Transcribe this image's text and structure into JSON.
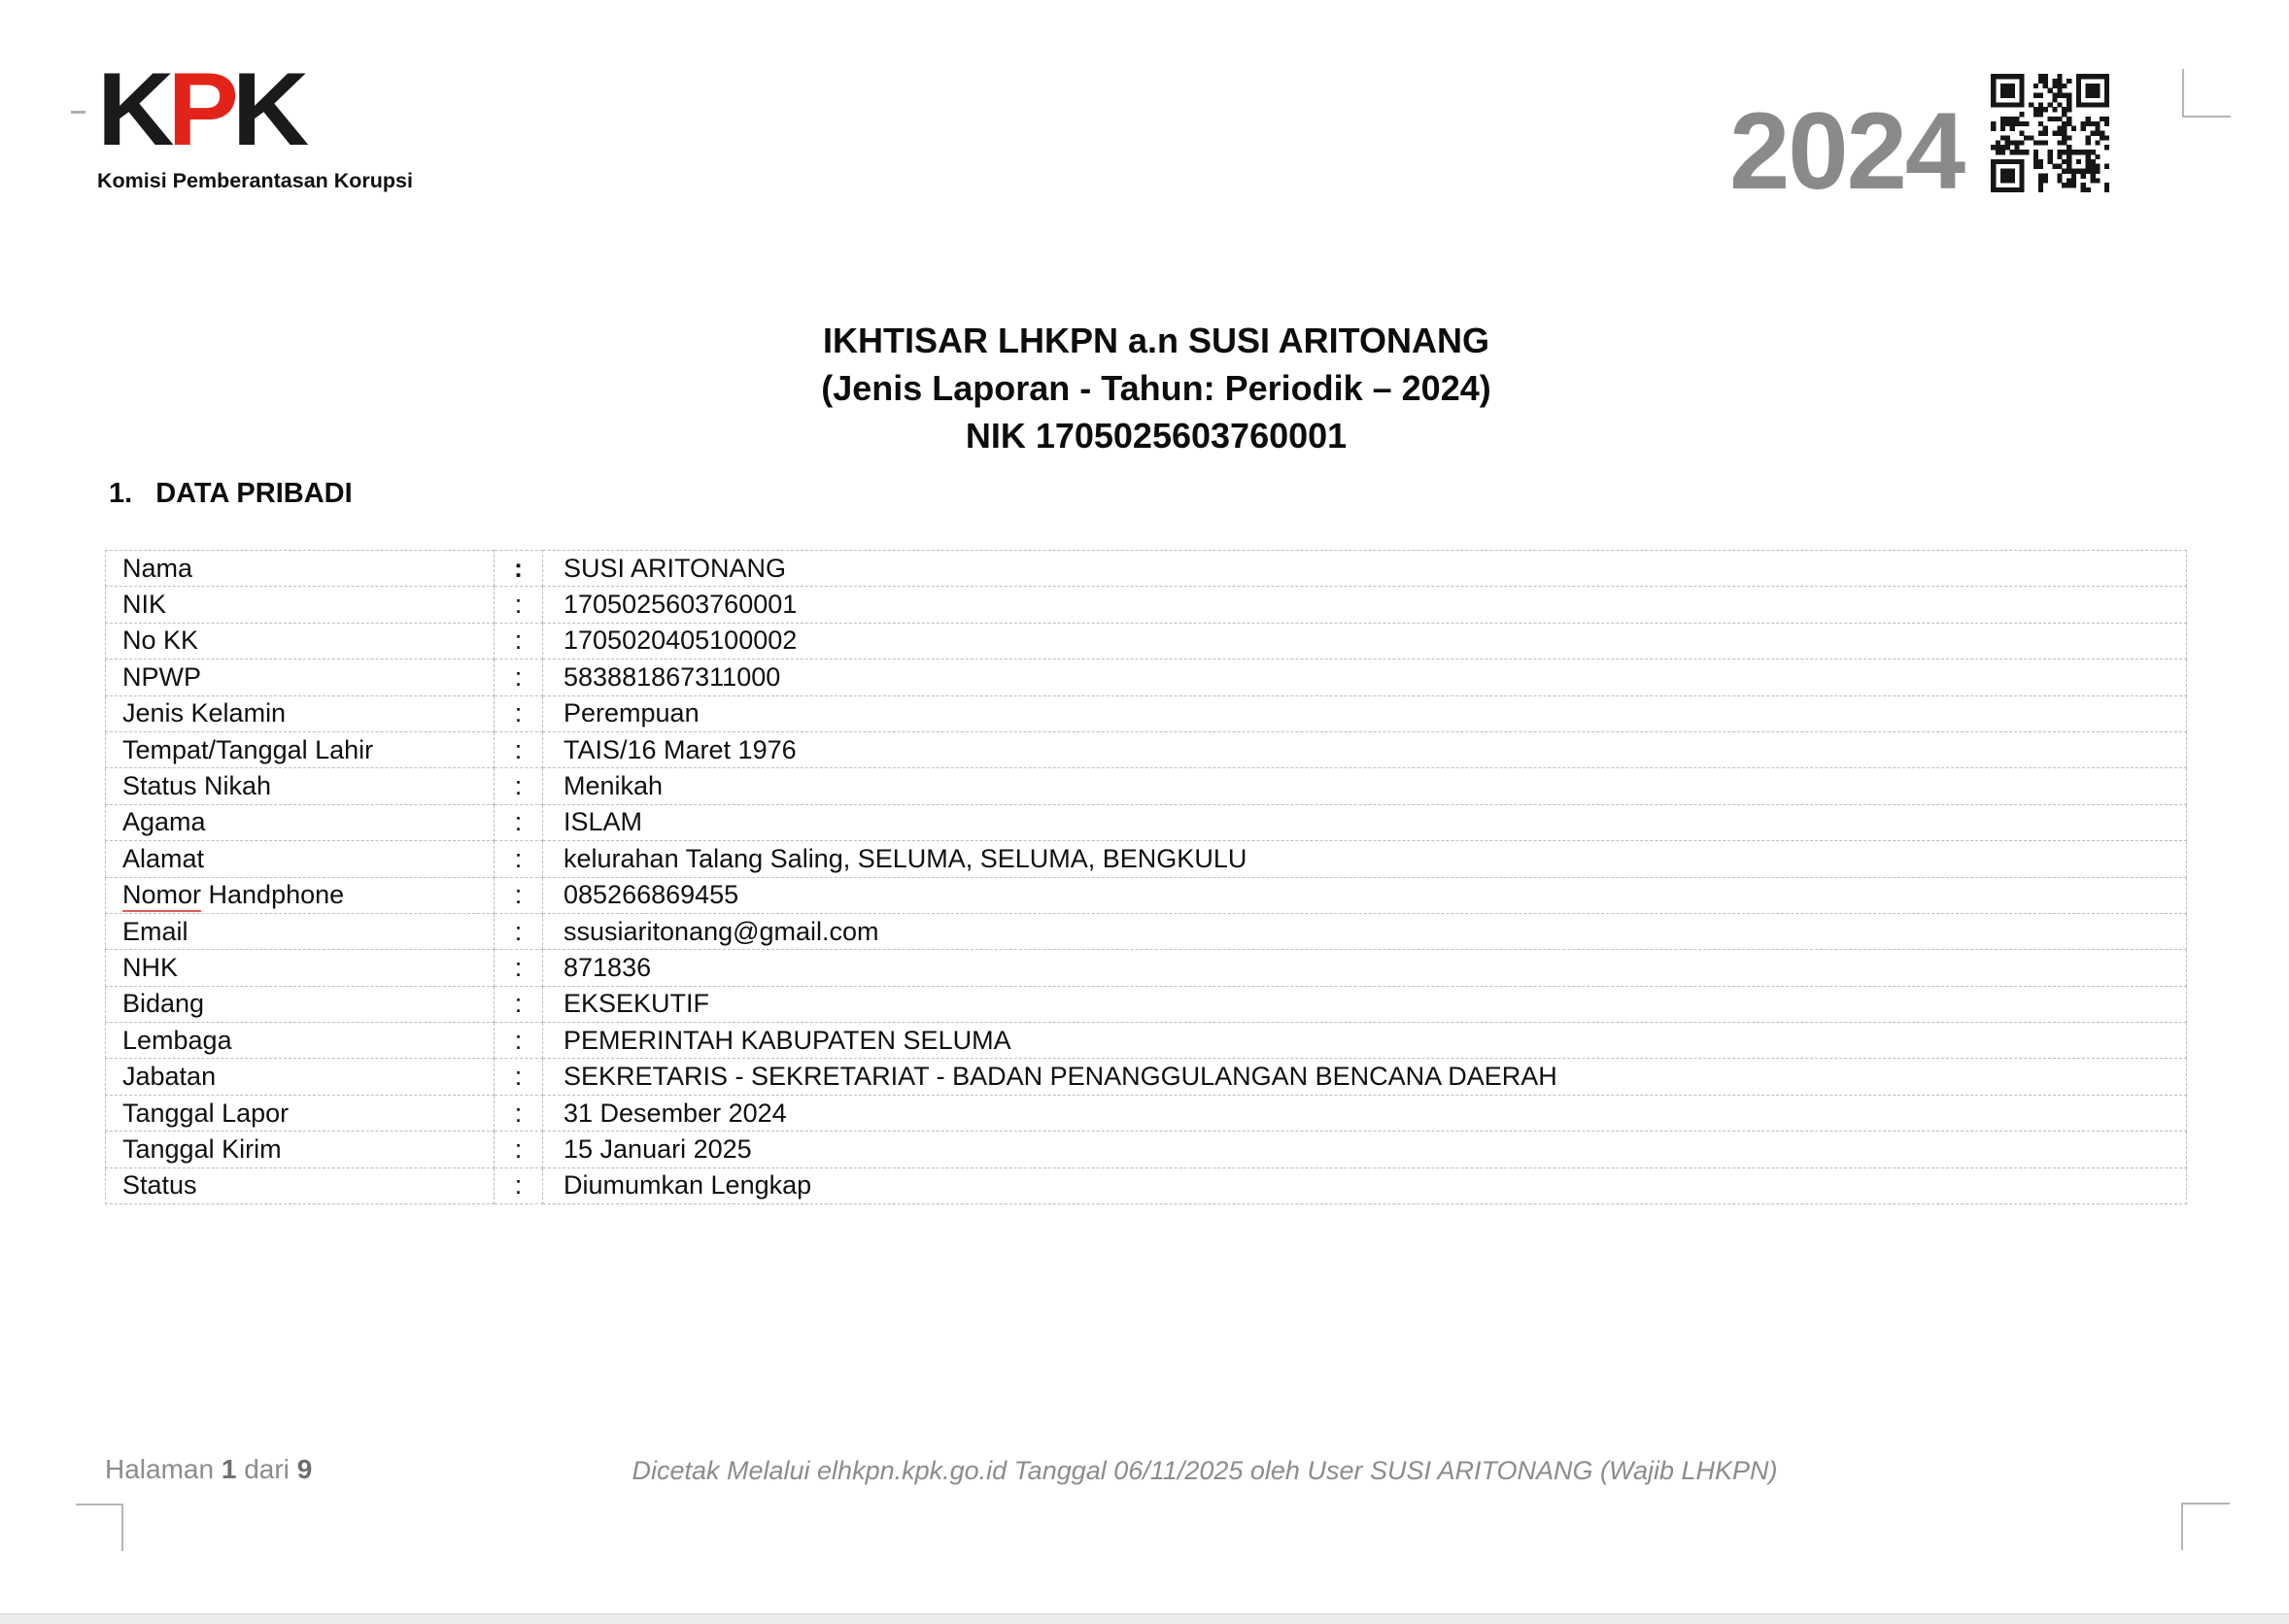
{
  "header": {
    "logo_letters": [
      {
        "ch": "K",
        "color": "black"
      },
      {
        "ch": "P",
        "color": "red"
      },
      {
        "ch": "K",
        "color": "black"
      }
    ],
    "logo_subtitle": "Komisi Pemberantasan Korupsi",
    "year": "2024"
  },
  "title": {
    "line1": "IKHTISAR LHKPN a.n SUSI ARITONANG",
    "line2": "(Jenis Laporan - Tahun: Periodik – 2024)",
    "line3": "NIK 1705025603760001"
  },
  "section": {
    "number": "1.",
    "heading": "DATA PRIBADI"
  },
  "data_table": {
    "separator": ":",
    "rows": [
      {
        "label": "Nama",
        "value": "SUSI ARITONANG",
        "bold_separator": true
      },
      {
        "label": "NIK",
        "value": "1705025603760001"
      },
      {
        "label": "No KK",
        "value": "1705020405100002"
      },
      {
        "label": "NPWP",
        "value": "583881867311000"
      },
      {
        "label": "Jenis Kelamin",
        "value": "Perempuan"
      },
      {
        "label": "Tempat/Tanggal Lahir",
        "value": "TAIS/16 Maret 1976"
      },
      {
        "label": "Status Nikah",
        "value": "Menikah"
      },
      {
        "label": "Agama",
        "value": "ISLAM"
      },
      {
        "label": "Alamat",
        "value": "kelurahan Talang Saling, SELUMA, SELUMA, BENGKULU"
      },
      {
        "label": "Nomor Handphone",
        "value": "085266869455",
        "spellcheck_word": "Nomor"
      },
      {
        "label": "Email",
        "value": "ssusiaritonang@gmail.com"
      },
      {
        "label": "NHK",
        "value": "871836"
      },
      {
        "label": "Bidang",
        "value": "EKSEKUTIF"
      },
      {
        "label": "Lembaga",
        "value": "PEMERINTAH KABUPATEN SELUMA"
      },
      {
        "label": "Jabatan",
        "value": "SEKRETARIS - SEKRETARIAT - BADAN PENANGGULANGAN BENCANA DAERAH"
      },
      {
        "label": "Tanggal Lapor",
        "value": "31 Desember 2024"
      },
      {
        "label": "Tanggal Kirim",
        "value": "15 Januari 2025"
      },
      {
        "label": "Status",
        "value": "Diumumkan Lengkap"
      }
    ]
  },
  "footer": {
    "page_label": "Halaman",
    "page_current": "1",
    "page_of": "dari",
    "page_total": "9",
    "print_info": "Dicetak Melalui elhkpn.kpk.go.id Tanggal 06/11/2025 oleh User SUSI ARITONANG (Wajib LHKPN)"
  },
  "icons": {
    "qr_code": "qr-code"
  },
  "colors": {
    "kpk_red": "#e2231a",
    "logo_black": "#1a1a1a",
    "year_gray": "#8a8a8a",
    "footer_gray": "#8c8c8c",
    "table_border": "#bdbdbd",
    "spellcheck_red": "#e25b5b",
    "crop_mark_gray": "#b5b5b5"
  }
}
